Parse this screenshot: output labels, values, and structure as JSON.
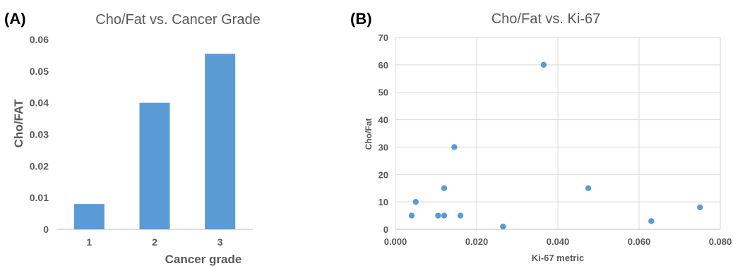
{
  "panels": {
    "a_label": "(A)",
    "b_label": "(B)"
  },
  "chart_data": [
    {
      "type": "bar",
      "title": "Cho/Fat vs. Cancer Grade",
      "xlabel": "Cancer grade",
      "ylabel": "Cho/FAT",
      "categories": [
        "1",
        "2",
        "3"
      ],
      "values": [
        0.008,
        0.04,
        0.0555
      ],
      "ylim": [
        0,
        0.06
      ],
      "yticks": [
        "0",
        "0.01",
        "0.02",
        "0.03",
        "0.04",
        "0.05",
        "0.06"
      ],
      "bar_color": "#5b9bd5",
      "grid": false,
      "legend": "none"
    },
    {
      "type": "scatter",
      "title": "Cho/Fat vs. Ki-67",
      "xlabel": "Ki-67 metric",
      "ylabel": "Cho/Fat",
      "xlim": [
        0,
        0.08
      ],
      "ylim": [
        0,
        70
      ],
      "xticks": [
        "0.000",
        "0.020",
        "0.040",
        "0.060",
        "0.080"
      ],
      "yticks": [
        "0",
        "10",
        "20",
        "30",
        "40",
        "50",
        "60",
        "70"
      ],
      "points": [
        {
          "x": 0.004,
          "y": 5
        },
        {
          "x": 0.005,
          "y": 10
        },
        {
          "x": 0.0105,
          "y": 5
        },
        {
          "x": 0.012,
          "y": 5
        },
        {
          "x": 0.012,
          "y": 15
        },
        {
          "x": 0.0145,
          "y": 30
        },
        {
          "x": 0.016,
          "y": 5
        },
        {
          "x": 0.0265,
          "y": 1
        },
        {
          "x": 0.0365,
          "y": 60
        },
        {
          "x": 0.0475,
          "y": 15
        },
        {
          "x": 0.063,
          "y": 3
        },
        {
          "x": 0.075,
          "y": 8
        }
      ],
      "point_color": "#5b9bd5",
      "grid": true,
      "legend": "none"
    }
  ]
}
